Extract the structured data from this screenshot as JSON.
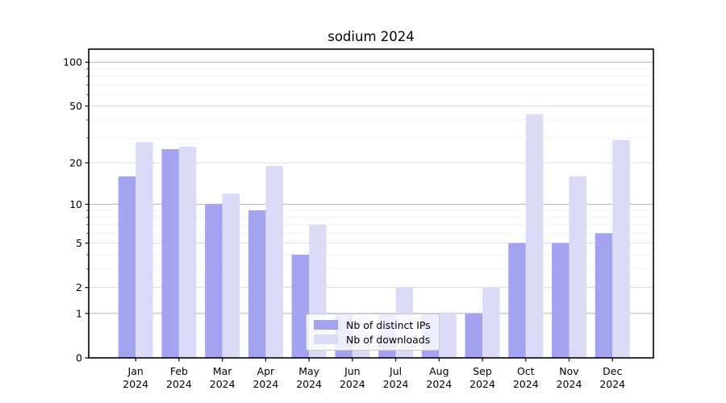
{
  "title": "sodium 2024",
  "chart_data": {
    "type": "bar",
    "title": "sodium 2024",
    "categories": [
      "Jan 2024",
      "Feb 2024",
      "Mar 2024",
      "Apr 2024",
      "May 2024",
      "Jun 2024",
      "Jul 2024",
      "Aug 2024",
      "Sep 2024",
      "Oct 2024",
      "Nov 2024",
      "Dec 2024"
    ],
    "series": [
      {
        "name": "Nb of distinct IPs",
        "color": "#a3a3ef",
        "values": [
          16,
          25,
          10,
          9,
          4,
          1,
          1,
          1,
          1,
          5,
          5,
          6
        ]
      },
      {
        "name": "Nb of downloads",
        "color": "#dbdbf7",
        "values": [
          28,
          26,
          12,
          19,
          7,
          1,
          2,
          1,
          2,
          44,
          16,
          29
        ]
      }
    ],
    "xlabel": "",
    "ylabel": "",
    "yscale": "log1p",
    "ylim": [
      0,
      124
    ],
    "yticks": [
      0,
      1,
      2,
      5,
      10,
      20,
      50,
      100
    ],
    "yticks_minor": [
      3,
      4,
      6,
      7,
      8,
      9,
      30,
      40,
      60,
      70,
      80,
      90
    ],
    "grid": true,
    "legend_position": "lower center"
  }
}
